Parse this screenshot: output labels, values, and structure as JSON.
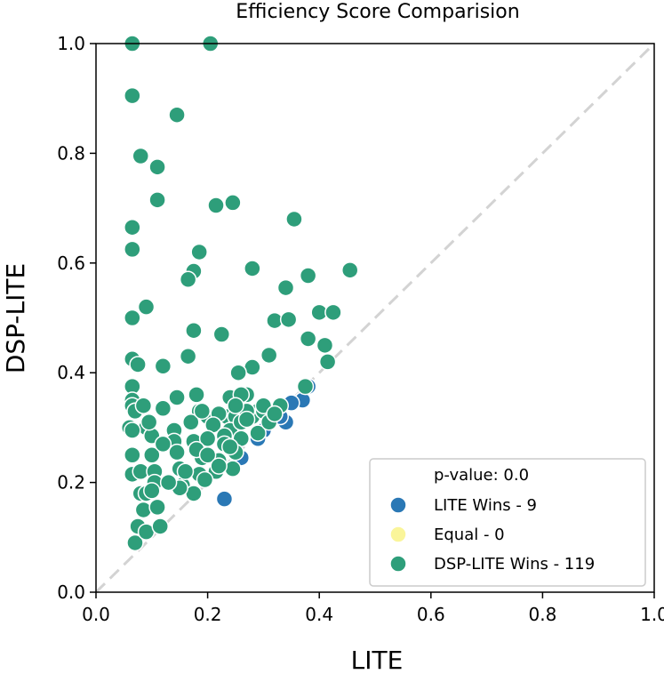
{
  "chart_data": {
    "type": "scatter",
    "title": "Efficiency Score Comparision",
    "xlabel": "LITE",
    "ylabel": "DSP-LITE",
    "xlim": [
      0.0,
      1.0
    ],
    "ylim": [
      0.0,
      1.0
    ],
    "xticks": [
      "0.0",
      "0.2",
      "0.4",
      "0.6",
      "0.8",
      "1.0"
    ],
    "yticks": [
      "0.0",
      "0.2",
      "0.4",
      "0.6",
      "0.8",
      "1.0"
    ],
    "diagonal": true,
    "grid": false,
    "legend": {
      "placement": "lower-right",
      "header": "p-value: 0.0",
      "entries": [
        {
          "label": "LITE Wins - 9",
          "color": "#2a78b5"
        },
        {
          "label": "Equal - 0",
          "color": "#faf59a"
        },
        {
          "label": "DSP-LITE Wins - 119",
          "color": "#2e9e7a"
        }
      ]
    },
    "series": [
      {
        "name": "LITE Wins",
        "color": "#2a78b5",
        "x": [
          0.23,
          0.34,
          0.37,
          0.35,
          0.38,
          0.3,
          0.26,
          0.29,
          0.33
        ],
        "y": [
          0.17,
          0.31,
          0.35,
          0.345,
          0.375,
          0.295,
          0.245,
          0.28,
          0.32
        ]
      },
      {
        "name": "Equal",
        "color": "#faf59a",
        "x": [],
        "y": []
      },
      {
        "name": "DSP-LITE Wins",
        "color": "#2e9e7a",
        "x": [
          0.065,
          0.205,
          0.065,
          0.145,
          0.08,
          0.11,
          0.11,
          0.215,
          0.245,
          0.355,
          0.065,
          0.065,
          0.185,
          0.28,
          0.175,
          0.165,
          0.455,
          0.38,
          0.34,
          0.065,
          0.09,
          0.32,
          0.345,
          0.4,
          0.425,
          0.175,
          0.225,
          0.38,
          0.41,
          0.415,
          0.065,
          0.075,
          0.12,
          0.165,
          0.31,
          0.28,
          0.255,
          0.375,
          0.065,
          0.065,
          0.145,
          0.18,
          0.24,
          0.27,
          0.065,
          0.07,
          0.12,
          0.185,
          0.195,
          0.235,
          0.265,
          0.29,
          0.2,
          0.22,
          0.25,
          0.28,
          0.3,
          0.06,
          0.09,
          0.14,
          0.17,
          0.21,
          0.24,
          0.26,
          0.065,
          0.1,
          0.14,
          0.175,
          0.2,
          0.23,
          0.26,
          0.29,
          0.065,
          0.1,
          0.145,
          0.19,
          0.22,
          0.25,
          0.065,
          0.08,
          0.105,
          0.15,
          0.185,
          0.215,
          0.245,
          0.08,
          0.09,
          0.105,
          0.155,
          0.175,
          0.195,
          0.075,
          0.085,
          0.11,
          0.07,
          0.09,
          0.115,
          0.07,
          0.095,
          0.085,
          0.12,
          0.18,
          0.2,
          0.27,
          0.31,
          0.33,
          0.26,
          0.22,
          0.19,
          0.23,
          0.24,
          0.3,
          0.32,
          0.16,
          0.27,
          0.15,
          0.13,
          0.1,
          0.25
        ],
        "y": [
          1.0,
          1.0,
          0.905,
          0.87,
          0.795,
          0.775,
          0.715,
          0.705,
          0.71,
          0.68,
          0.665,
          0.625,
          0.62,
          0.59,
          0.585,
          0.57,
          0.587,
          0.577,
          0.555,
          0.5,
          0.52,
          0.495,
          0.497,
          0.51,
          0.51,
          0.477,
          0.47,
          0.462,
          0.45,
          0.42,
          0.425,
          0.415,
          0.412,
          0.43,
          0.432,
          0.41,
          0.4,
          0.375,
          0.375,
          0.35,
          0.355,
          0.36,
          0.355,
          0.36,
          0.34,
          0.33,
          0.335,
          0.33,
          0.325,
          0.32,
          0.325,
          0.33,
          0.32,
          0.325,
          0.32,
          0.32,
          0.33,
          0.3,
          0.3,
          0.295,
          0.31,
          0.305,
          0.295,
          0.31,
          0.295,
          0.285,
          0.275,
          0.275,
          0.28,
          0.285,
          0.28,
          0.29,
          0.25,
          0.25,
          0.255,
          0.245,
          0.24,
          0.255,
          0.215,
          0.22,
          0.22,
          0.225,
          0.215,
          0.22,
          0.225,
          0.18,
          0.18,
          0.2,
          0.195,
          0.18,
          0.205,
          0.12,
          0.15,
          0.155,
          0.09,
          0.11,
          0.12,
          0.33,
          0.31,
          0.34,
          0.27,
          0.26,
          0.25,
          0.33,
          0.31,
          0.34,
          0.36,
          0.23,
          0.33,
          0.27,
          0.265,
          0.34,
          0.325,
          0.22,
          0.315,
          0.19,
          0.2,
          0.185,
          0.34
        ]
      }
    ]
  }
}
